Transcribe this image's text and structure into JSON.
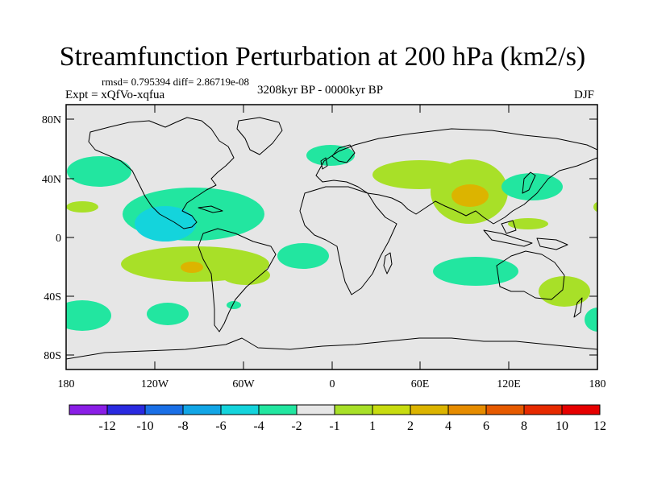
{
  "title": "Streamfunction Perturbation at 200 hPa (km2/s)",
  "stats_line": "rmsd= 0.795394 diff= 2.86719e-08",
  "experiment": "Expt = xQfVo-xqfua",
  "period": "3208kyr BP - 0000kyr BP",
  "season": "DJF",
  "y_axis_labels": [
    "80N",
    "40N",
    "0",
    "40S",
    "80S"
  ],
  "x_axis_labels": [
    "180",
    "120W",
    "60W",
    "0",
    "60E",
    "120E",
    "180"
  ],
  "colorbar": {
    "colors": [
      "#8a1ee6",
      "#2a2ae0",
      "#1a6fe6",
      "#12a6e6",
      "#14d4dc",
      "#22e6a0",
      "#e6e6e6",
      "#a8e028",
      "#c8dc10",
      "#dcb400",
      "#e68c00",
      "#e65a00",
      "#e62a00",
      "#e60000"
    ],
    "tick_labels": [
      "-12",
      "-10",
      "-8",
      "-6",
      "-4",
      "-2",
      "-1",
      "1",
      "2",
      "4",
      "6",
      "8",
      "10",
      "12"
    ]
  },
  "colors": {
    "background": "#e6e6e6",
    "neg_light": "#22e6a0",
    "neg_mid": "#14d4dc",
    "pos_light": "#a8e028",
    "pos_mid": "#c8dc10",
    "pos_strong": "#dcb400"
  }
}
